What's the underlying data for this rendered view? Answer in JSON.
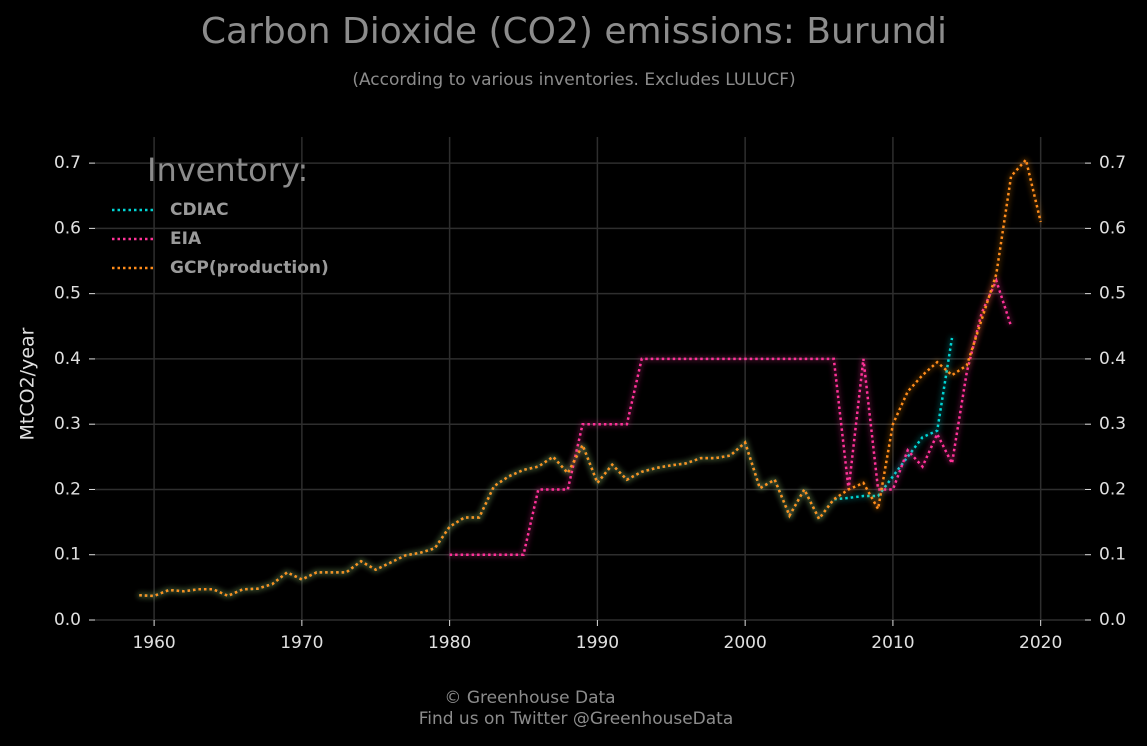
{
  "chart_data": {
    "type": "line",
    "title": "Carbon Dioxide (CO2) emissions: Burundi",
    "subtitle": "(According to various inventories. Excludes LULUCF)",
    "y_label": "MtCO2/year",
    "legend_title": "Inventory:",
    "legend": "upper left",
    "grid": true,
    "footer": [
      "© Greenhouse Data",
      "Find us on Twitter @GreenhouseData"
    ],
    "xlim": [
      1956,
      2023
    ],
    "xticks": [
      1960,
      1970,
      1980,
      1990,
      2000,
      2010,
      2020
    ],
    "ylim": [
      0,
      0.74
    ],
    "yticks": [
      {
        "value": 0,
        "label": "0.0"
      },
      0.1,
      0.2,
      0.3,
      0.4,
      0.5,
      0.6,
      0.7
    ],
    "x": [
      1959,
      1960,
      1961,
      1962,
      1963,
      1964,
      1965,
      1966,
      1967,
      1968,
      1969,
      1970,
      1971,
      1972,
      1973,
      1974,
      1975,
      1976,
      1977,
      1978,
      1979,
      1980,
      1981,
      1982,
      1983,
      1984,
      1985,
      1986,
      1987,
      1988,
      1989,
      1990,
      1991,
      1992,
      1993,
      1994,
      1995,
      1996,
      1997,
      1998,
      1999,
      2000,
      2001,
      2002,
      2003,
      2004,
      2005,
      2006,
      2007,
      2008,
      2009,
      2010,
      2011,
      2012,
      2013,
      2014,
      2015,
      2016,
      2017,
      2018,
      2019,
      2020
    ],
    "series": [
      {
        "name": "CDIAC",
        "color": "#00d4d4",
        "values": [
          0.038,
          0.037,
          0.046,
          0.044,
          0.047,
          0.047,
          0.037,
          0.047,
          0.048,
          0.055,
          0.073,
          0.062,
          0.073,
          0.073,
          0.073,
          0.09,
          0.077,
          0.088,
          0.099,
          0.103,
          0.11,
          0.143,
          0.157,
          0.157,
          0.205,
          0.22,
          0.23,
          0.235,
          0.25,
          0.225,
          0.268,
          0.21,
          0.238,
          0.215,
          0.227,
          0.233,
          0.237,
          0.24,
          0.248,
          0.248,
          0.252,
          0.272,
          0.202,
          0.215,
          0.16,
          0.2,
          0.155,
          0.185,
          0.187,
          0.19,
          0.19,
          0.22,
          0.25,
          0.28,
          0.29,
          0.432,
          null,
          null,
          null,
          null,
          null,
          null
        ]
      },
      {
        "name": "EIA",
        "color": "#ff3399",
        "values": [
          null,
          null,
          null,
          null,
          null,
          null,
          null,
          null,
          null,
          null,
          null,
          null,
          null,
          null,
          null,
          null,
          null,
          null,
          null,
          null,
          null,
          0.1,
          0.1,
          0.1,
          0.1,
          0.1,
          0.1,
          0.2,
          0.2,
          0.2,
          0.3,
          0.3,
          0.3,
          0.3,
          0.4,
          0.4,
          0.4,
          0.4,
          0.4,
          0.4,
          0.4,
          0.4,
          0.4,
          0.4,
          0.4,
          0.4,
          0.4,
          0.4,
          0.2,
          0.4,
          0.2,
          0.2,
          0.26,
          0.235,
          0.285,
          0.24,
          0.38,
          0.47,
          0.52,
          0.45,
          null,
          null
        ]
      },
      {
        "name": "GCP(production)",
        "color": "#ff8c1a",
        "values": [
          0.038,
          0.037,
          0.046,
          0.044,
          0.047,
          0.047,
          0.037,
          0.047,
          0.048,
          0.055,
          0.073,
          0.062,
          0.073,
          0.073,
          0.073,
          0.09,
          0.077,
          0.088,
          0.099,
          0.103,
          0.11,
          0.143,
          0.157,
          0.157,
          0.205,
          0.22,
          0.23,
          0.235,
          0.25,
          0.225,
          0.268,
          0.21,
          0.238,
          0.215,
          0.227,
          0.233,
          0.237,
          0.24,
          0.248,
          0.248,
          0.252,
          0.272,
          0.202,
          0.215,
          0.16,
          0.2,
          0.155,
          0.185,
          0.2,
          0.21,
          0.17,
          0.3,
          0.35,
          0.375,
          0.395,
          0.375,
          0.39,
          0.46,
          0.53,
          0.68,
          0.705,
          0.61
        ]
      }
    ]
  }
}
